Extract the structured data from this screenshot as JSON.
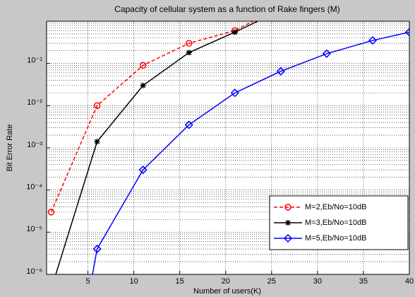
{
  "chart_data": {
    "type": "line",
    "title": "Capacity of cellular system as a function of Rake fingers (M)",
    "x_label": "Number of users(K)",
    "y_label": "Bit Error Rate",
    "xlim": [
      0.5,
      40
    ],
    "xticks": [
      5,
      10,
      15,
      20,
      25,
      30,
      35,
      40
    ],
    "ylim": [
      1e-06,
      1
    ],
    "log_y": true,
    "grid": true,
    "legend": "lower right",
    "yticks": [
      {
        "value": 1e-06,
        "label": "10⁻⁶"
      },
      {
        "value": 1e-05,
        "label": "10⁻⁵"
      },
      {
        "value": 0.0001,
        "label": "10⁻⁴"
      },
      {
        "value": 0.001,
        "label": "10⁻³"
      },
      {
        "value": 0.01,
        "label": "10⁻²"
      },
      {
        "value": 0.1,
        "label": "10⁻¹"
      }
    ],
    "series": [
      {
        "name": "M=2,Eb/No=10dB",
        "color": "#ff0000",
        "dash": true,
        "marker": "circle",
        "x": [
          1,
          6,
          11,
          16,
          21,
          23
        ],
        "values": [
          3e-05,
          0.01,
          0.09,
          0.3,
          0.6,
          1
        ]
      },
      {
        "name": "M=3,Eb/No=10dB",
        "color": "#000000",
        "dash": false,
        "marker": "star",
        "x": [
          1.5,
          6,
          11,
          16,
          21,
          23.5
        ],
        "values": [
          1e-06,
          0.0014,
          0.03,
          0.18,
          0.55,
          1
        ]
      },
      {
        "name": "M=5,Eb/No=10dB",
        "color": "#0000ff",
        "dash": false,
        "marker": "diamond",
        "x": [
          5.5,
          6,
          11,
          16,
          21,
          26,
          31,
          36,
          40
        ],
        "values": [
          1e-06,
          4e-06,
          0.0003,
          0.0035,
          0.02,
          0.065,
          0.17,
          0.35,
          0.55
        ]
      }
    ]
  }
}
